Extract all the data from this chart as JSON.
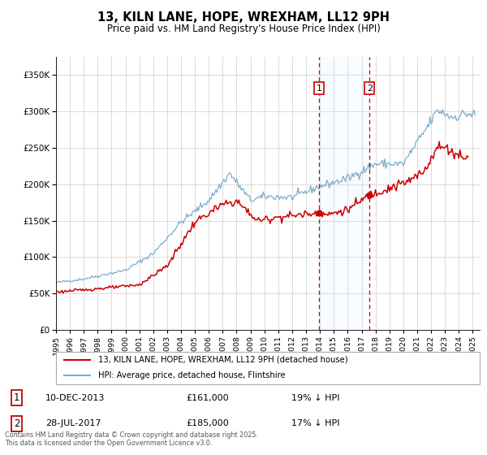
{
  "title": "13, KILN LANE, HOPE, WREXHAM, LL12 9PH",
  "subtitle": "Price paid vs. HM Land Registry's House Price Index (HPI)",
  "legend_entries": [
    "13, KILN LANE, HOPE, WREXHAM, LL12 9PH (detached house)",
    "HPI: Average price, detached house, Flintshire"
  ],
  "sale1_date_t": 2013.936,
  "sale1_price": 161000,
  "sale2_date_t": 2017.572,
  "sale2_price": 185000,
  "sale1_display": "10-DEC-2013",
  "sale2_display": "28-JUL-2017",
  "sale1_price_display": "£161,000",
  "sale2_price_display": "£185,000",
  "sale1_hpi_diff": "19% ↓ HPI",
  "sale2_hpi_diff": "17% ↓ HPI",
  "property_line_color": "#cc0000",
  "hpi_line_color": "#7aadcd",
  "shaded_region_color": "#ddeeff",
  "dashed_line_color": "#cc0000",
  "ylim": [
    0,
    375000
  ],
  "yticks": [
    0,
    50000,
    100000,
    150000,
    200000,
    250000,
    300000,
    350000
  ],
  "xlim_start": 1995.0,
  "xlim_end": 2025.5,
  "footer": "Contains HM Land Registry data © Crown copyright and database right 2025.\nThis data is licensed under the Open Government Licence v3.0.",
  "background_color": "#ffffff",
  "plot_bg_color": "#ffffff",
  "grid_color": "#cccccc",
  "hpi_anchors": {
    "1995.0": 65000,
    "1997.0": 70000,
    "2000.0": 82000,
    "2002.0": 105000,
    "2004.0": 148000,
    "2006.0": 178000,
    "2007.5": 215000,
    "2009.0": 178000,
    "2010.0": 183000,
    "2012.0": 182000,
    "2014.0": 197000,
    "2016.0": 208000,
    "2018.0": 228000,
    "2020.0": 228000,
    "2021.5": 272000,
    "2022.5": 302000,
    "2023.5": 292000,
    "2024.5": 297000,
    "2025.2": 295000
  },
  "prop_anchors": {
    "1995.0": 52000,
    "1997.0": 55000,
    "1999.5": 59000,
    "2001.0": 62000,
    "2003.0": 88000,
    "2005.0": 148000,
    "2007.0": 172000,
    "2008.0": 177000,
    "2009.5": 150000,
    "2011.0": 155000,
    "2013.936": 161000,
    "2014.5": 158000,
    "2016.0": 165000,
    "2017.572": 185000,
    "2018.5": 192000,
    "2019.5": 198000,
    "2020.5": 205000,
    "2021.5": 218000,
    "2022.3": 248000,
    "2022.8": 252000,
    "2023.2": 248000,
    "2023.8": 242000,
    "2024.3": 238000,
    "2024.7": 242000
  }
}
